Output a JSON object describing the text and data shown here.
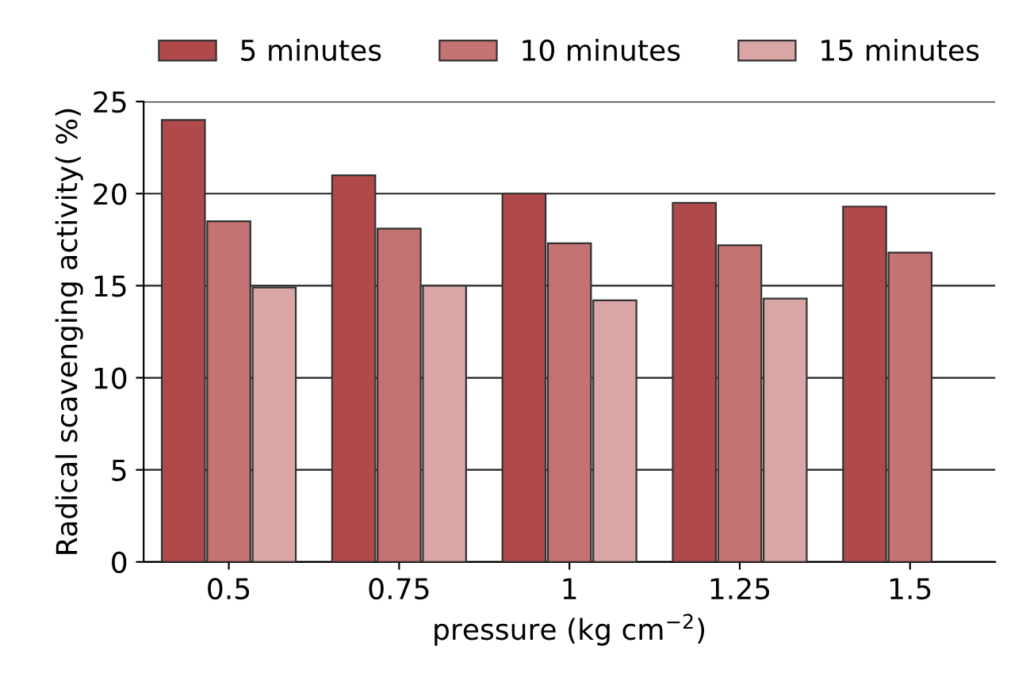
{
  "chart_data": {
    "type": "bar",
    "xlabel": "pressure (kg cm$^{−2}$)",
    "ylabel": "Radical scavenging activity( %)",
    "categories": [
      "0.5",
      "0.75",
      "1",
      "1.25",
      "1.5"
    ],
    "series": [
      {
        "name": "5 minutes",
        "color": "#b04a4a",
        "values": [
          24,
          21,
          20,
          19.5,
          19.3
        ]
      },
      {
        "name": "10 minutes",
        "color": "#c47272",
        "values": [
          18.5,
          18.1,
          17.3,
          17.2,
          16.8
        ]
      },
      {
        "name": "15 minutes",
        "color": "#d9a5a5",
        "values": [
          14.9,
          15,
          14.2,
          14.3,
          null
        ]
      }
    ],
    "ylim": [
      0,
      25
    ],
    "yticks": [
      0,
      5,
      10,
      15,
      20,
      25
    ],
    "grid": "y",
    "legend": "top"
  }
}
